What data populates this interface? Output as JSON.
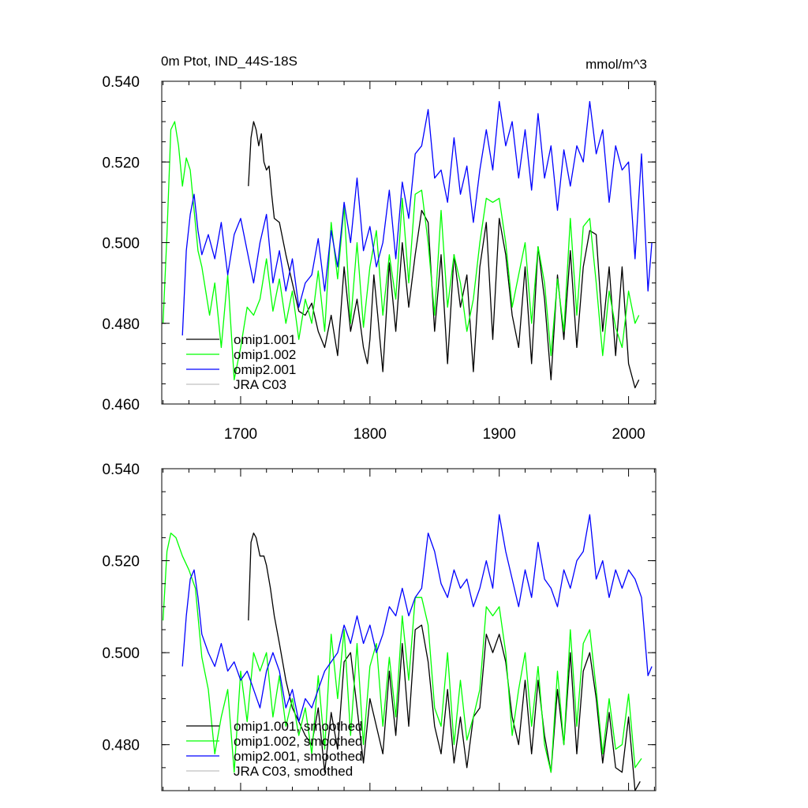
{
  "chart_data": [
    {
      "type": "line",
      "title": "0m Ptot, IND_44S-18S",
      "units": "mmol/m^3",
      "xlim": [
        1639,
        2021
      ],
      "ylim": [
        0.46,
        0.54
      ],
      "xticks": [
        1700,
        1800,
        1900,
        2000
      ],
      "xtick_labels": [
        "1700",
        "1800",
        "1900",
        "2000"
      ],
      "yticks": [
        0.46,
        0.48,
        0.5,
        0.52,
        0.54
      ],
      "ytick_labels": [
        "0.460",
        "0.480",
        "0.500",
        "0.520",
        "0.540"
      ],
      "grid": false,
      "legend_position": "bottom-left",
      "series": [
        {
          "name": "omip1.001",
          "color": "#000000",
          "x": [
            1706,
            1708,
            1710,
            1712,
            1714,
            1716,
            1718,
            1720,
            1722,
            1724,
            1726,
            1730,
            1735,
            1740,
            1745,
            1750,
            1755,
            1760,
            1765,
            1770,
            1775,
            1780,
            1785,
            1790,
            1795,
            1798,
            1800,
            1803,
            1806,
            1810,
            1815,
            1820,
            1825,
            1830,
            1835,
            1840,
            1845,
            1850,
            1855,
            1860,
            1865,
            1870,
            1875,
            1880,
            1885,
            1890,
            1895,
            1900,
            1905,
            1910,
            1915,
            1920,
            1925,
            1930,
            1935,
            1940,
            1945,
            1950,
            1955,
            1960,
            1965,
            1970,
            1975,
            1980,
            1985,
            1990,
            1995,
            2000,
            2005,
            2008
          ],
          "y": [
            0.514,
            0.526,
            0.53,
            0.528,
            0.524,
            0.527,
            0.52,
            0.518,
            0.519,
            0.512,
            0.506,
            0.505,
            0.497,
            0.49,
            0.483,
            0.482,
            0.485,
            0.478,
            0.474,
            0.482,
            0.472,
            0.494,
            0.478,
            0.486,
            0.474,
            0.47,
            0.476,
            0.492,
            0.482,
            0.468,
            0.495,
            0.478,
            0.5,
            0.484,
            0.497,
            0.508,
            0.505,
            0.478,
            0.497,
            0.47,
            0.497,
            0.484,
            0.492,
            0.468,
            0.494,
            0.505,
            0.476,
            0.506,
            0.497,
            0.482,
            0.474,
            0.494,
            0.47,
            0.499,
            0.486,
            0.466,
            0.492,
            0.476,
            0.498,
            0.474,
            0.494,
            0.503,
            0.502,
            0.478,
            0.494,
            0.472,
            0.494,
            0.47,
            0.464,
            0.466
          ]
        },
        {
          "name": "omip1.002",
          "color": "#00ff00",
          "x": [
            1640,
            1643,
            1646,
            1649,
            1652,
            1655,
            1658,
            1661,
            1664,
            1667,
            1670,
            1673,
            1676,
            1680,
            1685,
            1690,
            1695,
            1700,
            1705,
            1710,
            1715,
            1720,
            1725,
            1730,
            1735,
            1740,
            1745,
            1750,
            1755,
            1760,
            1765,
            1770,
            1775,
            1780,
            1785,
            1790,
            1795,
            1800,
            1805,
            1810,
            1815,
            1820,
            1825,
            1830,
            1835,
            1840,
            1845,
            1850,
            1855,
            1860,
            1865,
            1870,
            1875,
            1880,
            1885,
            1890,
            1895,
            1900,
            1905,
            1910,
            1915,
            1920,
            1925,
            1930,
            1935,
            1940,
            1945,
            1950,
            1955,
            1960,
            1965,
            1970,
            1975,
            1980,
            1985,
            1990,
            1995,
            2000,
            2005,
            2008
          ],
          "y": [
            0.48,
            0.502,
            0.528,
            0.53,
            0.524,
            0.514,
            0.521,
            0.518,
            0.508,
            0.498,
            0.494,
            0.488,
            0.482,
            0.49,
            0.474,
            0.492,
            0.466,
            0.474,
            0.484,
            0.482,
            0.486,
            0.496,
            0.483,
            0.491,
            0.48,
            0.488,
            0.476,
            0.486,
            0.48,
            0.493,
            0.478,
            0.505,
            0.491,
            0.509,
            0.48,
            0.5,
            0.479,
            0.494,
            0.503,
            0.482,
            0.497,
            0.486,
            0.511,
            0.49,
            0.512,
            0.513,
            0.5,
            0.482,
            0.508,
            0.484,
            0.497,
            0.49,
            0.478,
            0.486,
            0.5,
            0.511,
            0.51,
            0.511,
            0.5,
            0.484,
            0.492,
            0.5,
            0.48,
            0.499,
            0.49,
            0.472,
            0.491,
            0.478,
            0.506,
            0.482,
            0.504,
            0.506,
            0.49,
            0.472,
            0.488,
            0.479,
            0.474,
            0.488,
            0.48,
            0.482
          ]
        },
        {
          "name": "omip2.001",
          "color": "#0000ff",
          "x": [
            1655,
            1658,
            1661,
            1664,
            1667,
            1670,
            1675,
            1680,
            1685,
            1690,
            1695,
            1700,
            1705,
            1710,
            1715,
            1720,
            1725,
            1730,
            1735,
            1740,
            1745,
            1750,
            1755,
            1760,
            1765,
            1770,
            1775,
            1780,
            1785,
            1790,
            1795,
            1800,
            1805,
            1810,
            1815,
            1820,
            1825,
            1830,
            1835,
            1840,
            1845,
            1850,
            1855,
            1860,
            1865,
            1870,
            1875,
            1880,
            1885,
            1890,
            1895,
            1900,
            1905,
            1910,
            1915,
            1920,
            1925,
            1930,
            1935,
            1940,
            1945,
            1950,
            1955,
            1960,
            1965,
            1970,
            1975,
            1980,
            1985,
            1990,
            1995,
            2000,
            2005,
            2010,
            2015,
            2018
          ],
          "y": [
            0.477,
            0.498,
            0.507,
            0.512,
            0.503,
            0.497,
            0.502,
            0.496,
            0.505,
            0.492,
            0.502,
            0.506,
            0.498,
            0.49,
            0.5,
            0.507,
            0.49,
            0.498,
            0.488,
            0.496,
            0.484,
            0.49,
            0.492,
            0.501,
            0.488,
            0.503,
            0.494,
            0.51,
            0.5,
            0.516,
            0.498,
            0.504,
            0.494,
            0.5,
            0.513,
            0.496,
            0.515,
            0.506,
            0.522,
            0.524,
            0.533,
            0.516,
            0.518,
            0.51,
            0.526,
            0.512,
            0.519,
            0.505,
            0.518,
            0.528,
            0.518,
            0.535,
            0.524,
            0.53,
            0.516,
            0.528,
            0.513,
            0.532,
            0.516,
            0.524,
            0.508,
            0.523,
            0.514,
            0.524,
            0.52,
            0.535,
            0.522,
            0.528,
            0.51,
            0.524,
            0.518,
            0.52,
            0.496,
            0.522,
            0.488,
            0.5
          ]
        }
      ],
      "legend": [
        "omip1.001",
        "omip1.002",
        "omip2.001",
        "JRA C03"
      ],
      "legend_colors": [
        "#000000",
        "#00ff00",
        "#0000ff",
        "#c0c0c0"
      ]
    },
    {
      "type": "line",
      "title": "",
      "xlim": [
        1639,
        2021
      ],
      "ylim": [
        0.47,
        0.54
      ],
      "xticks": [
        1700,
        1800,
        1900,
        2000
      ],
      "yticks": [
        0.48,
        0.5,
        0.52,
        0.54
      ],
      "ytick_labels": [
        "0.480",
        "0.500",
        "0.520",
        "0.540"
      ],
      "grid": false,
      "legend_position": "bottom-left",
      "series": [
        {
          "name": "omip1.001, smoothed",
          "color": "#000000",
          "x": [
            1706,
            1708,
            1710,
            1712,
            1715,
            1718,
            1720,
            1723,
            1726,
            1730,
            1735,
            1740,
            1745,
            1750,
            1755,
            1760,
            1765,
            1770,
            1775,
            1780,
            1785,
            1790,
            1795,
            1800,
            1805,
            1810,
            1815,
            1820,
            1825,
            1830,
            1835,
            1840,
            1845,
            1850,
            1855,
            1860,
            1865,
            1870,
            1875,
            1880,
            1885,
            1890,
            1895,
            1900,
            1905,
            1910,
            1915,
            1920,
            1925,
            1930,
            1935,
            1940,
            1945,
            1950,
            1955,
            1960,
            1965,
            1970,
            1975,
            1980,
            1985,
            1990,
            1995,
            2000,
            2005,
            2009
          ],
          "y": [
            0.507,
            0.524,
            0.526,
            0.525,
            0.521,
            0.521,
            0.519,
            0.514,
            0.508,
            0.502,
            0.494,
            0.488,
            0.485,
            0.482,
            0.48,
            0.488,
            0.474,
            0.487,
            0.479,
            0.498,
            0.5,
            0.488,
            0.476,
            0.49,
            0.484,
            0.478,
            0.496,
            0.482,
            0.502,
            0.484,
            0.505,
            0.506,
            0.498,
            0.484,
            0.478,
            0.492,
            0.476,
            0.486,
            0.475,
            0.486,
            0.488,
            0.504,
            0.5,
            0.504,
            0.498,
            0.486,
            0.48,
            0.494,
            0.478,
            0.494,
            0.482,
            0.474,
            0.492,
            0.48,
            0.5,
            0.478,
            0.496,
            0.5,
            0.49,
            0.476,
            0.487,
            0.475,
            0.474,
            0.486,
            0.47,
            0.472
          ]
        },
        {
          "name": "omip1.002, smoothed",
          "color": "#00ff00",
          "x": [
            1640,
            1643,
            1646,
            1650,
            1655,
            1660,
            1665,
            1670,
            1675,
            1680,
            1685,
            1690,
            1695,
            1700,
            1705,
            1710,
            1715,
            1720,
            1725,
            1730,
            1735,
            1740,
            1745,
            1750,
            1755,
            1760,
            1765,
            1770,
            1775,
            1780,
            1785,
            1790,
            1795,
            1800,
            1805,
            1810,
            1815,
            1820,
            1825,
            1830,
            1835,
            1840,
            1845,
            1850,
            1855,
            1860,
            1865,
            1870,
            1875,
            1880,
            1885,
            1890,
            1895,
            1900,
            1905,
            1910,
            1915,
            1920,
            1925,
            1930,
            1935,
            1940,
            1945,
            1950,
            1955,
            1960,
            1965,
            1970,
            1975,
            1980,
            1985,
            1990,
            1995,
            2000,
            2005,
            2010
          ],
          "y": [
            0.507,
            0.522,
            0.526,
            0.525,
            0.521,
            0.518,
            0.514,
            0.499,
            0.492,
            0.478,
            0.486,
            0.492,
            0.474,
            0.496,
            0.485,
            0.5,
            0.496,
            0.5,
            0.486,
            0.495,
            0.484,
            0.49,
            0.482,
            0.488,
            0.478,
            0.495,
            0.479,
            0.504,
            0.49,
            0.505,
            0.482,
            0.502,
            0.48,
            0.497,
            0.502,
            0.484,
            0.499,
            0.486,
            0.508,
            0.494,
            0.512,
            0.512,
            0.506,
            0.488,
            0.484,
            0.5,
            0.48,
            0.494,
            0.481,
            0.486,
            0.492,
            0.51,
            0.508,
            0.51,
            0.5,
            0.482,
            0.492,
            0.5,
            0.484,
            0.497,
            0.48,
            0.474,
            0.496,
            0.48,
            0.505,
            0.484,
            0.502,
            0.505,
            0.492,
            0.478,
            0.49,
            0.479,
            0.48,
            0.491,
            0.475,
            0.477
          ]
        },
        {
          "name": "omip2.001, smoothed",
          "color": "#0000ff",
          "x": [
            1655,
            1658,
            1661,
            1664,
            1667,
            1670,
            1675,
            1680,
            1685,
            1690,
            1695,
            1700,
            1705,
            1710,
            1715,
            1720,
            1725,
            1730,
            1735,
            1740,
            1745,
            1750,
            1755,
            1760,
            1765,
            1770,
            1775,
            1780,
            1785,
            1790,
            1795,
            1800,
            1805,
            1810,
            1815,
            1820,
            1825,
            1830,
            1835,
            1840,
            1845,
            1850,
            1855,
            1860,
            1865,
            1870,
            1875,
            1880,
            1885,
            1890,
            1895,
            1900,
            1905,
            1910,
            1915,
            1920,
            1925,
            1930,
            1935,
            1940,
            1945,
            1950,
            1955,
            1960,
            1965,
            1970,
            1975,
            1980,
            1985,
            1990,
            1995,
            2000,
            2005,
            2010,
            2015,
            2018
          ],
          "y": [
            0.497,
            0.508,
            0.516,
            0.518,
            0.512,
            0.504,
            0.5,
            0.497,
            0.502,
            0.496,
            0.498,
            0.494,
            0.496,
            0.492,
            0.488,
            0.496,
            0.5,
            0.496,
            0.488,
            0.492,
            0.485,
            0.49,
            0.488,
            0.492,
            0.496,
            0.498,
            0.5,
            0.506,
            0.502,
            0.508,
            0.502,
            0.506,
            0.5,
            0.504,
            0.51,
            0.508,
            0.514,
            0.508,
            0.512,
            0.514,
            0.526,
            0.522,
            0.515,
            0.512,
            0.518,
            0.514,
            0.516,
            0.51,
            0.514,
            0.52,
            0.514,
            0.53,
            0.522,
            0.516,
            0.51,
            0.518,
            0.512,
            0.524,
            0.516,
            0.514,
            0.51,
            0.518,
            0.514,
            0.52,
            0.522,
            0.53,
            0.516,
            0.52,
            0.512,
            0.518,
            0.514,
            0.518,
            0.516,
            0.512,
            0.495,
            0.497
          ]
        }
      ],
      "legend": [
        "omip1.001, smoothed",
        "omip1.002, smoothed",
        "omip2.001, smoothed",
        "JRA C03, smoothed"
      ],
      "legend_colors": [
        "#000000",
        "#00ff00",
        "#0000ff",
        "#c0c0c0"
      ]
    }
  ]
}
